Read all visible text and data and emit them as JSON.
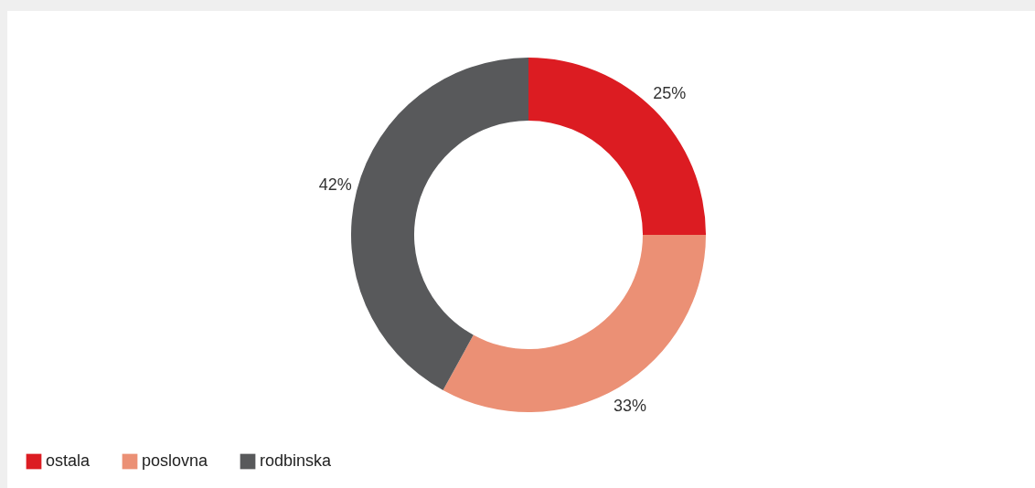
{
  "chart_data": {
    "type": "donut",
    "categories": [
      "ostala",
      "poslovna",
      "rodbinska"
    ],
    "values": [
      25,
      33,
      42
    ],
    "colors": [
      "#dc1c22",
      "#eb9075",
      "#58595b"
    ],
    "value_labels": [
      "25%",
      "33%",
      "42%"
    ],
    "legend": "bottom left"
  }
}
